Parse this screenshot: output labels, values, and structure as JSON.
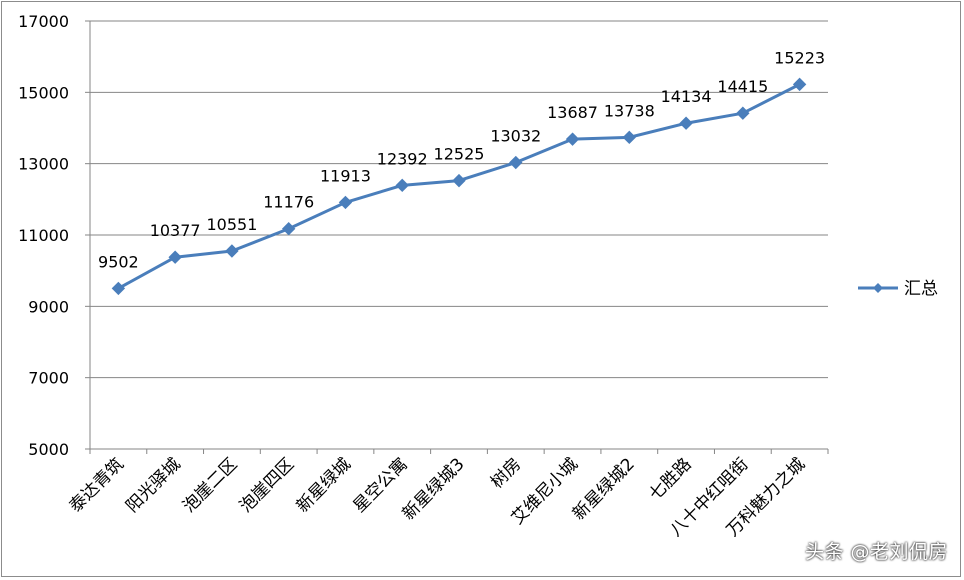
{
  "chart_data": {
    "type": "line",
    "title": "",
    "xlabel": "",
    "ylabel": "",
    "categories": [
      "泰达青筑",
      "阳光驿城",
      "泡崖二区",
      "泡崖四区",
      "新星绿城",
      "星空公寓",
      "新星绿城3",
      "树房",
      "艾维尼小城",
      "新星绿城2",
      "七胜路",
      "八十中红咀街",
      "万科魅力之城"
    ],
    "series": [
      {
        "name": "汇总",
        "values": [
          9502,
          10377,
          10551,
          11176,
          11913,
          12392,
          12525,
          13032,
          13687,
          13738,
          14134,
          14415,
          15223
        ]
      }
    ],
    "data_labels": [
      "9502",
      "10377",
      "10551",
      "11176",
      "11913",
      "12392",
      "12525",
      "13032",
      "13687",
      "13738",
      "14134",
      "14415",
      "15223"
    ],
    "ylim": [
      5000,
      17000
    ],
    "yticks": [
      5000,
      7000,
      9000,
      11000,
      13000,
      15000,
      17000
    ],
    "ytick_labels": [
      "5000",
      "7000",
      "9000",
      "11000",
      "13000",
      "15000",
      "17000"
    ],
    "grid": true,
    "legend_position": "right",
    "colors": {
      "series": "#4a7ebb",
      "grid": "#868686",
      "axis": "#868686"
    }
  },
  "watermark": "头条 @老刘侃房"
}
